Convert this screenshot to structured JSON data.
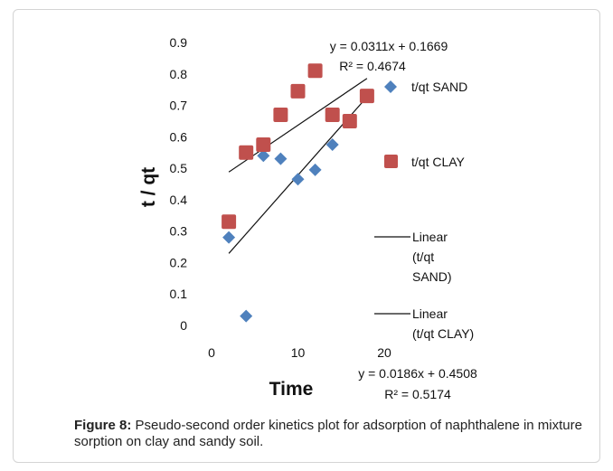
{
  "figure": {
    "caption_label": "Figure 8:",
    "caption_text": "Pseudo-second order kinetics plot for adsorption of naphthalene in mixture sorption on clay and sandy soil."
  },
  "chart_data": {
    "type": "scatter",
    "xlabel": "Time",
    "ylabel": "t / qt",
    "xlim": [
      0,
      20
    ],
    "ylim": [
      0,
      0.9
    ],
    "x_ticks": [
      "0",
      "10",
      "20"
    ],
    "y_ticks": [
      "0",
      "0.1",
      "0.2",
      "0.3",
      "0.4",
      "0.5",
      "0.6",
      "0.7",
      "0.8",
      "0.9"
    ],
    "grid": false,
    "legend_position": "right",
    "series": [
      {
        "name": "t/qt SAND",
        "marker": "diamond",
        "color": "#4f81bd",
        "x": [
          2,
          4,
          6,
          8,
          10,
          12,
          14
        ],
        "y": [
          0.28,
          0.03,
          0.54,
          0.53,
          0.465,
          0.495,
          0.575
        ]
      },
      {
        "name": "t/qt CLAY",
        "marker": "square",
        "color": "#c0504d",
        "x": [
          2,
          4,
          6,
          8,
          10,
          12,
          14,
          16,
          18
        ],
        "y": [
          0.33,
          0.55,
          0.575,
          0.67,
          0.745,
          0.81,
          0.67,
          0.65,
          0.73
        ]
      }
    ],
    "trendlines": [
      {
        "name": "Linear (t/qt SAND)",
        "slope": 0.0311,
        "intercept": 0.1669,
        "x_range": [
          2,
          18
        ],
        "equation": "y = 0.0311x + 0.1669",
        "r2": "R² = 0.4674"
      },
      {
        "name": "Linear (t/qt CLAY)",
        "slope": 0.0186,
        "intercept": 0.4508,
        "x_range": [
          2,
          18
        ],
        "equation": "y = 0.0186x + 0.4508",
        "r2": "R² = 0.5174"
      }
    ],
    "legend": [
      {
        "label": "t/qt SAND",
        "marker": "diamond"
      },
      {
        "label": "t/qt CLAY",
        "marker": "square"
      },
      {
        "label_lines": [
          "Linear",
          "(t/qt",
          "SAND)"
        ],
        "marker": "line"
      },
      {
        "label_lines": [
          "Linear",
          "(t/qt CLAY)"
        ],
        "marker": "line"
      }
    ]
  }
}
